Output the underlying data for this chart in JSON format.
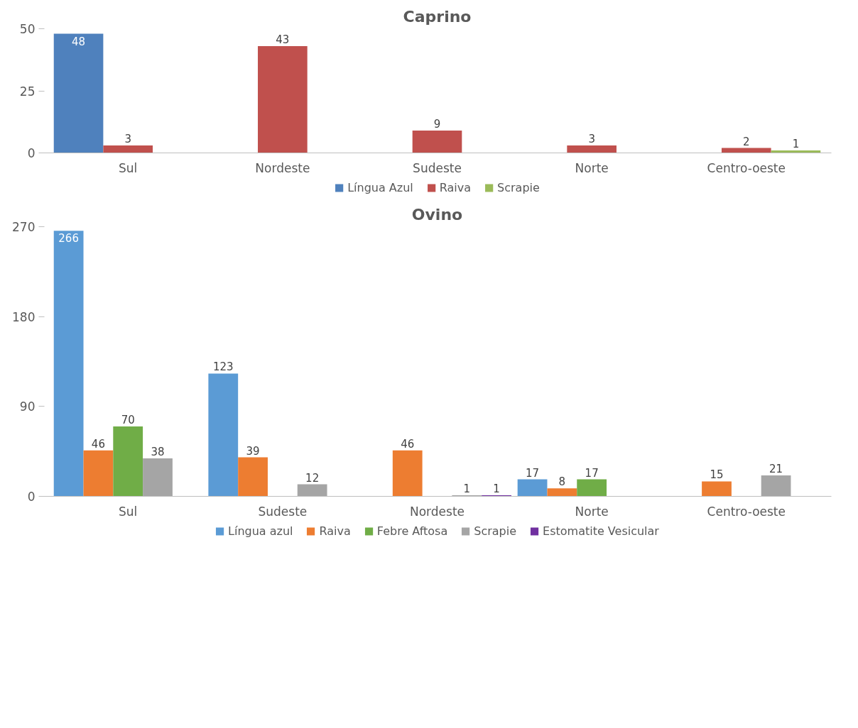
{
  "chart_data": [
    {
      "type": "bar",
      "title": "Caprino",
      "categories": [
        "Sul",
        "Nordeste",
        "Sudeste",
        "Norte",
        "Centro-oeste"
      ],
      "ylim": [
        0,
        50
      ],
      "yticks": [
        0,
        25,
        50
      ],
      "grid": false,
      "legend": "bottom",
      "data_labels": true,
      "series": [
        {
          "name": "Língua Azul",
          "color": "#4f81bd",
          "values": [
            48,
            null,
            null,
            null,
            null
          ]
        },
        {
          "name": "Raiva",
          "color": "#c0504d",
          "values": [
            3,
            43,
            9,
            3,
            2
          ]
        },
        {
          "name": "Scrapie",
          "color": "#9bbb59",
          "values": [
            null,
            null,
            null,
            null,
            1
          ]
        }
      ]
    },
    {
      "type": "bar",
      "title": "Ovino",
      "categories": [
        "Sul",
        "Sudeste",
        "Nordeste",
        "Norte",
        "Centro-oeste"
      ],
      "ylim": [
        0,
        270
      ],
      "yticks": [
        0,
        90,
        180,
        270
      ],
      "grid": false,
      "legend": "bottom",
      "data_labels": true,
      "series": [
        {
          "name": "Língua azul",
          "color": "#5b9bd5",
          "values": [
            266,
            123,
            null,
            17,
            null
          ]
        },
        {
          "name": "Raiva",
          "color": "#ed7d31",
          "values": [
            46,
            39,
            46,
            8,
            15
          ]
        },
        {
          "name": "Febre Aftosa",
          "color": "#70ad47",
          "values": [
            70,
            null,
            null,
            17,
            null
          ]
        },
        {
          "name": "Scrapie",
          "color": "#a5a5a5",
          "values": [
            38,
            12,
            1,
            null,
            21
          ]
        },
        {
          "name": "Estomatite Vesicular",
          "color": "#7030a0",
          "values": [
            null,
            null,
            1,
            null,
            null
          ]
        }
      ]
    }
  ]
}
